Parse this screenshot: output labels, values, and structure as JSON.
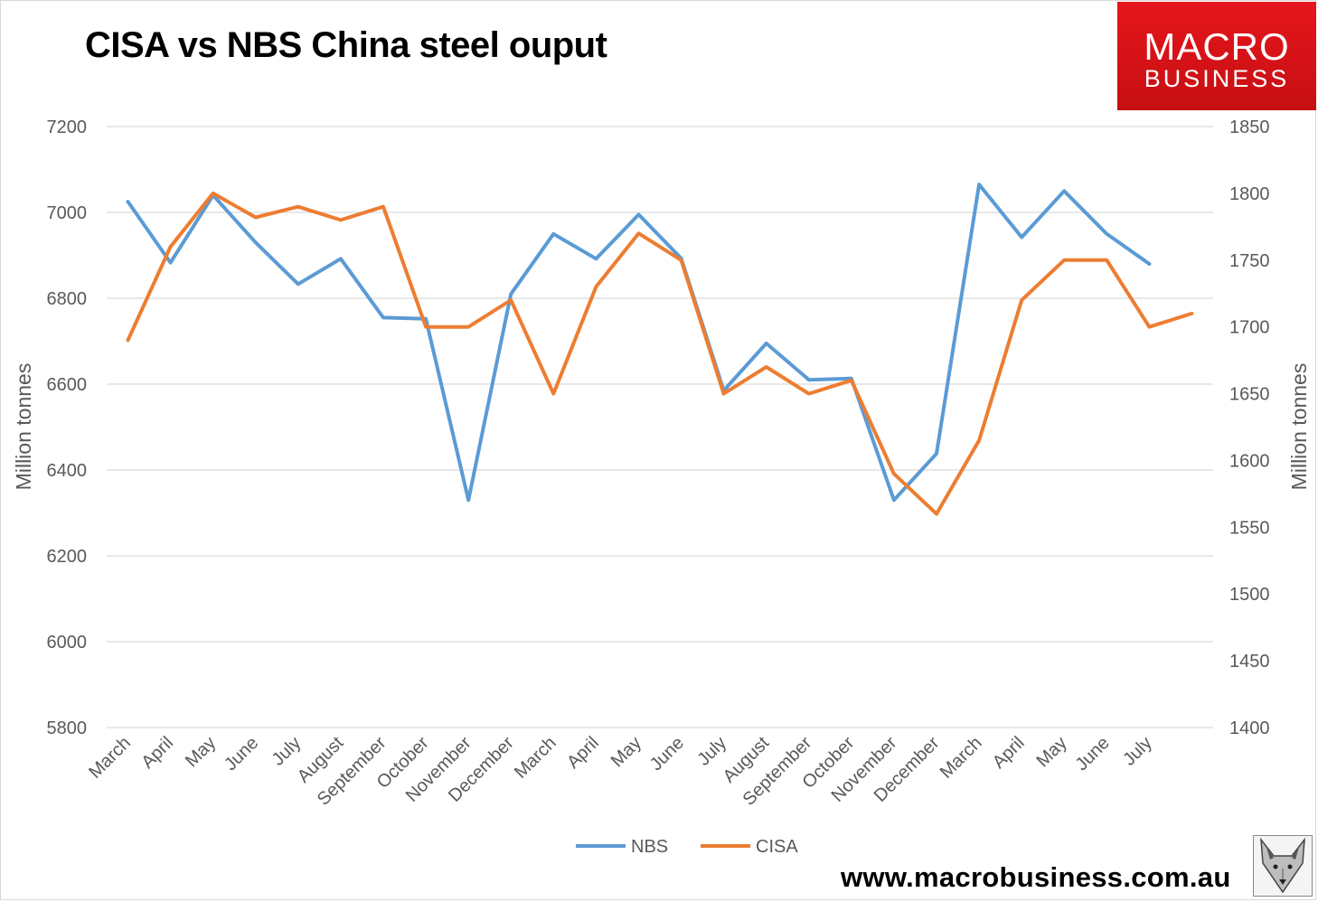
{
  "title": "CISA vs NBS China steel ouput",
  "logo": {
    "line1": "MACRO",
    "line2": "BUSINESS"
  },
  "website": "www.macrobusiness.com.au",
  "colors": {
    "NBS": "#5b9bd5",
    "CISA": "#ed7d31",
    "grid": "#d9d9d9",
    "text": "#595959"
  },
  "icons": {
    "corner": "wolf-icon"
  },
  "chart_data": {
    "type": "line",
    "categories": [
      "March",
      "April",
      "May",
      "June",
      "July",
      "August",
      "September",
      "October",
      "November",
      "December",
      "March",
      "April",
      "May",
      "June",
      "July",
      "August",
      "September",
      "October",
      "November",
      "December",
      "March",
      "April",
      "May",
      "June",
      "July",
      ""
    ],
    "left_axis": {
      "label": "Million tonnes",
      "min": 5800,
      "max": 7200,
      "step": 200,
      "ticks": [
        "5800",
        "6000",
        "6200",
        "6400",
        "6600",
        "6800",
        "7000",
        "7200"
      ]
    },
    "right_axis": {
      "label": "Million tonnes",
      "min": 1400,
      "max": 1850,
      "step": 50,
      "ticks": [
        "1400",
        "1450",
        "1500",
        "1550",
        "1600",
        "1650",
        "1700",
        "1750",
        "1800",
        "1850"
      ]
    },
    "grid": true,
    "legend_position": "bottom",
    "series": [
      {
        "name": "NBS",
        "axis": "left",
        "values": [
          7025,
          6883,
          7040,
          6930,
          6833,
          6892,
          6755,
          6752,
          6330,
          6810,
          6950,
          6892,
          6995,
          6893,
          6585,
          6695,
          6610,
          6613,
          6330,
          6438,
          7065,
          6942,
          7050,
          6950,
          6880,
          null
        ]
      },
      {
        "name": "CISA",
        "axis": "right",
        "values": [
          1690,
          1760,
          1800,
          1782,
          1790,
          1780,
          1790,
          1700,
          1700,
          1720,
          1650,
          1730,
          1770,
          1750,
          1650,
          1670,
          1650,
          1660,
          1590,
          1560,
          1615,
          1720,
          1750,
          1750,
          1700,
          1710
        ]
      }
    ]
  }
}
